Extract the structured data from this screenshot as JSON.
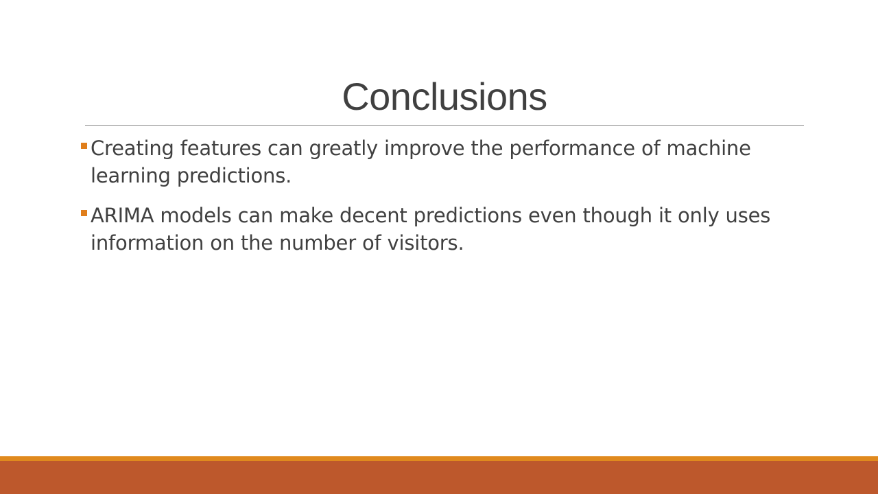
{
  "slide": {
    "title": "Conclusions",
    "bullets": [
      {
        "text": "Creating features can greatly improve the performance of machine learning predictions."
      },
      {
        "text": "ARIMA models can make decent predictions even though it only uses information on the number of visitors."
      }
    ]
  },
  "colors": {
    "title_text": "#404040",
    "bullet_marker": "#e07e1b",
    "footer_top": "#e08a1e",
    "footer_bottom": "#bd582c",
    "rule": "#8c8c8c"
  }
}
